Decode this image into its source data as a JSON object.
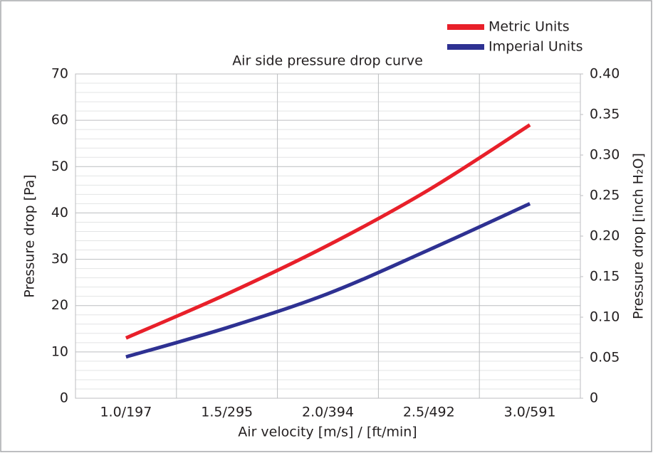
{
  "chart_data": {
    "type": "line",
    "title": "Air side pressure drop curve",
    "xlabel": "Air velocity [m/s] / [ft/min]",
    "ylabel": "Pressure drop [Pa]",
    "y2label": "Pressure drop [inch H₂O]",
    "categories": [
      "1.0/197",
      "1.5/295",
      "2.0/394",
      "2.5/492",
      "3.0/591"
    ],
    "series": [
      {
        "name": "Metric Units",
        "color": "#e8202a",
        "values": [
          13,
          22.5,
          33,
          45,
          59
        ]
      },
      {
        "name": "Imperial Units",
        "color": "#2e3192",
        "axis": "y2",
        "values": [
          0.051,
          0.087,
          0.129,
          0.183,
          0.24
        ]
      }
    ],
    "ylim": [
      0,
      70
    ],
    "yticks": [
      0,
      10,
      20,
      30,
      40,
      50,
      60,
      70
    ],
    "yminorticks": [
      2,
      4,
      6,
      8,
      12,
      14,
      16,
      18,
      22,
      24,
      26,
      28,
      32,
      34,
      36,
      38,
      42,
      44,
      46,
      48,
      52,
      54,
      56,
      58,
      62,
      64,
      66,
      68
    ],
    "y2lim": [
      0,
      0.4
    ],
    "y2ticks": [
      0,
      0.05,
      {
        "value": 0.1,
        "label": "0.10"
      },
      0.15,
      {
        "value": 0.2,
        "label": "0.20"
      },
      0.25,
      {
        "value": 0.3,
        "label": "0.30"
      },
      0.35,
      {
        "value": 0.4,
        "label": "0.40"
      }
    ],
    "grid": true,
    "legend": "upper right"
  }
}
